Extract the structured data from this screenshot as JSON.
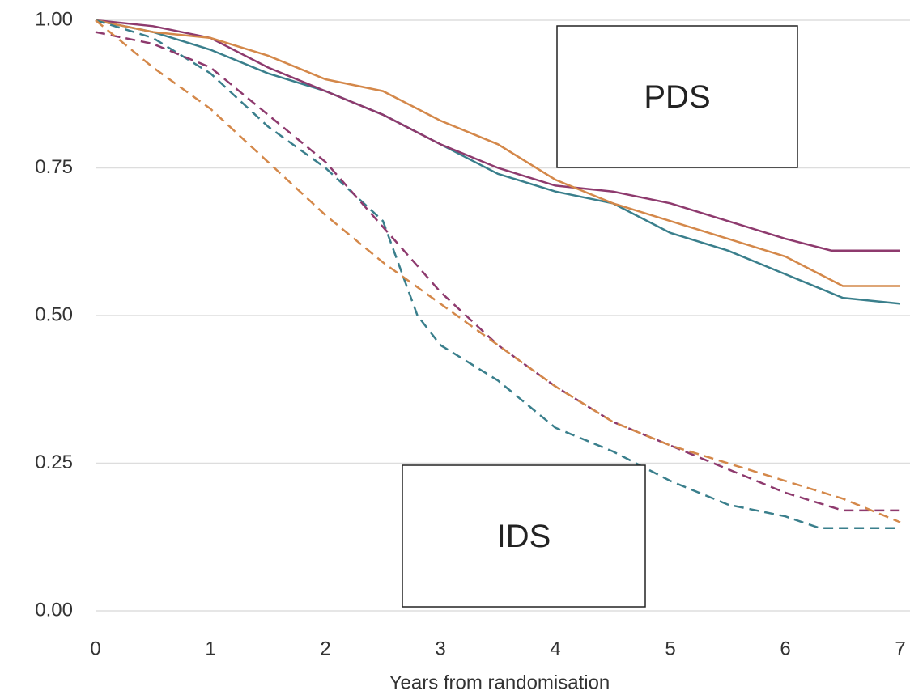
{
  "chart_data": {
    "type": "line",
    "xlabel": "Years from randomisation",
    "xlim": [
      0,
      7
    ],
    "xticks": [
      0,
      1,
      2,
      3,
      4,
      5,
      6,
      7
    ],
    "ylim": [
      0,
      1
    ],
    "yticks": [
      {
        "value": 0,
        "label": "0.00"
      },
      {
        "value": 0.25,
        "label": "0.25"
      },
      {
        "value": 0.5,
        "label": "0.50"
      },
      {
        "value": 0.75,
        "label": "0.75"
      },
      {
        "value": 1,
        "label": "1.00"
      }
    ],
    "grid": true,
    "annotations": [
      "PDS",
      "IDS"
    ],
    "series": [
      {
        "color": "#3a7f8c",
        "dashed": false,
        "x": [
          0,
          0.5,
          1,
          1.5,
          2,
          2.5,
          3,
          3.5,
          4,
          4.5,
          5,
          5.5,
          6,
          6.5,
          7
        ],
        "values": [
          1,
          0.98,
          0.95,
          0.91,
          0.88,
          0.84,
          0.79,
          0.74,
          0.71,
          0.69,
          0.64,
          0.61,
          0.57,
          0.53,
          0.52
        ]
      },
      {
        "color": "#8e3a6e",
        "dashed": false,
        "x": [
          0,
          0.5,
          1,
          1.5,
          2,
          2.5,
          3,
          3.5,
          4,
          4.5,
          5,
          5.5,
          6,
          6.4,
          7
        ],
        "values": [
          1,
          0.99,
          0.97,
          0.92,
          0.88,
          0.84,
          0.79,
          0.75,
          0.72,
          0.71,
          0.69,
          0.66,
          0.63,
          0.61,
          0.61
        ]
      },
      {
        "color": "#d4884a",
        "dashed": false,
        "x": [
          0,
          0.5,
          1,
          1.5,
          2,
          2.5,
          3,
          3.5,
          4,
          4.5,
          5,
          5.5,
          6,
          6.5,
          7
        ],
        "values": [
          1,
          0.98,
          0.97,
          0.94,
          0.9,
          0.88,
          0.83,
          0.79,
          0.73,
          0.69,
          0.66,
          0.63,
          0.6,
          0.55,
          0.55
        ]
      },
      {
        "color": "#3a7f8c",
        "dashed": true,
        "x": [
          0,
          0.5,
          1,
          1.5,
          2,
          2.5,
          2.8,
          3,
          3.5,
          4,
          4.5,
          5,
          5.5,
          6,
          6.3,
          7
        ],
        "values": [
          1,
          0.97,
          0.91,
          0.82,
          0.75,
          0.66,
          0.5,
          0.45,
          0.39,
          0.31,
          0.27,
          0.22,
          0.18,
          0.16,
          0.14,
          0.14
        ]
      },
      {
        "color": "#8e3a6e",
        "dashed": true,
        "x": [
          0,
          0.5,
          1,
          1.5,
          2,
          2.5,
          3,
          3.5,
          4,
          4.5,
          5,
          5.5,
          6,
          6.5,
          7
        ],
        "values": [
          0.98,
          0.96,
          0.92,
          0.84,
          0.76,
          0.65,
          0.54,
          0.45,
          0.38,
          0.32,
          0.28,
          0.24,
          0.2,
          0.17,
          0.17
        ]
      },
      {
        "color": "#d4884a",
        "dashed": true,
        "x": [
          0,
          0.5,
          1,
          1.5,
          2,
          2.5,
          3,
          3.5,
          4,
          4.5,
          5,
          5.5,
          6,
          6.5,
          7
        ],
        "values": [
          1,
          0.92,
          0.85,
          0.76,
          0.67,
          0.59,
          0.52,
          0.45,
          0.38,
          0.32,
          0.28,
          0.25,
          0.22,
          0.19,
          0.15
        ]
      }
    ]
  }
}
